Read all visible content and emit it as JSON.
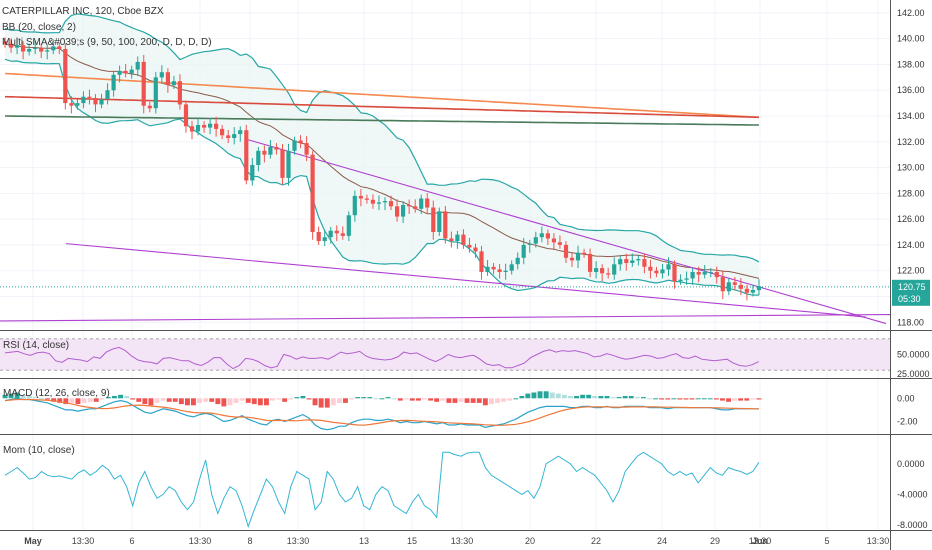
{
  "header": {
    "title": "CATERPILLAR INC, 120, Cboe BZX",
    "bb_label": "BB (20, close, 2)",
    "sma_label": "Multi SMA&#039;s (9, 50, 100, 200, D, D, D, D)"
  },
  "panes": {
    "rsi": {
      "label": "RSI (14, close)",
      "ticks": [
        "50.0000",
        "25.0000"
      ]
    },
    "macd": {
      "label": "MACD (12, 26, close, 9)",
      "ticks": [
        "0.00",
        "-2.00"
      ]
    },
    "mom": {
      "label": "Mom (10, close)",
      "ticks": [
        "0.0000",
        "-4.0000",
        "-8.0000"
      ]
    }
  },
  "price_axis": {
    "ticks": [
      "142.00",
      "140.00",
      "138.00",
      "136.00",
      "134.00",
      "132.00",
      "130.00",
      "128.00",
      "126.00",
      "124.00",
      "122.00",
      "120.00",
      "118.00"
    ],
    "last_price": "120.75",
    "countdown": "05:30"
  },
  "time_axis": [
    "May",
    "13:30",
    "6",
    "13:30",
    "8",
    "13:30",
    "13",
    "15",
    "13:30",
    "20",
    "22",
    "24",
    "29",
    "13:30",
    "Jun",
    "5",
    "13:30"
  ],
  "colors": {
    "up": "#26a69a",
    "down": "#ef5350",
    "bb_band": "#26a6a6",
    "bb_basis": "#8b5a4a",
    "sma50": "#6d4c41",
    "sma100": "#f4884e",
    "sma200": "#d84a3b",
    "sma_extra": "#4a7a5a",
    "trend": "#b040d0",
    "rsi_fill": "#f3e5f5",
    "rsi_line": "#b25ed0",
    "macd": "#29a3c9",
    "signal": "#f0773a",
    "mom": "#33b5d5"
  },
  "chart_data": {
    "type": "line",
    "title": "CATERPILLAR INC, 120, Cboe BZX",
    "ylim": [
      117.4,
      143.0
    ],
    "close": [
      139.6,
      139.3,
      139.5,
      139.0,
      139.2,
      139.3,
      139.0,
      139.1,
      139.4,
      139.2,
      135.0,
      134.8,
      135.0,
      135.5,
      135.4,
      134.9,
      135.3,
      136.0,
      137.2,
      137.5,
      137.3,
      137.6,
      138.2,
      134.8,
      134.6,
      137.0,
      137.4,
      136.4,
      136.7,
      134.9,
      133.2,
      132.8,
      133.3,
      133.1,
      133.4,
      133.0,
      132.5,
      132.3,
      132.6,
      132.9,
      129.0,
      130.2,
      131.3,
      131.0,
      131.6,
      131.4,
      129.2,
      131.3,
      132.1,
      131.9,
      131.0,
      125.0,
      124.3,
      124.6,
      125.1,
      124.9,
      124.7,
      126.3,
      127.8,
      127.6,
      127.5,
      127.2,
      127.3,
      127.4,
      127.0,
      126.2,
      127.1,
      127.0,
      126.8,
      127.6,
      126.9,
      125.0,
      126.6,
      124.5,
      124.3,
      124.8,
      124.0,
      123.8,
      123.5,
      121.9,
      122.3,
      122.1,
      121.9,
      122.0,
      122.5,
      123.0,
      124.0,
      124.1,
      124.6,
      124.9,
      124.5,
      124.2,
      124.0,
      123.0,
      122.8,
      123.4,
      123.3,
      121.9,
      122.2,
      121.8,
      121.7,
      122.5,
      122.9,
      122.6,
      122.8,
      122.9,
      122.3,
      122.0,
      121.8,
      122.1,
      122.5,
      121.2,
      121.3,
      121.4,
      121.9,
      121.7,
      121.9,
      121.9,
      121.5,
      120.4,
      121.1,
      120.9,
      120.6,
      120.3,
      120.5,
      120.8
    ],
    "series": [],
    "rsi": [
      52,
      53,
      54,
      51,
      49,
      52,
      53,
      51,
      42,
      40,
      45,
      44,
      43,
      41,
      47,
      45,
      53,
      57,
      59,
      55,
      48,
      43,
      41,
      40,
      38,
      45,
      46,
      44,
      42,
      42,
      38,
      36,
      40,
      46,
      46,
      38,
      32,
      36,
      45,
      44,
      41,
      36,
      33,
      35,
      50,
      48,
      44,
      47,
      45,
      45,
      46,
      44,
      48,
      53,
      51,
      52,
      54,
      48,
      45,
      44,
      43,
      44,
      47,
      53,
      51,
      52,
      48,
      44,
      41,
      45,
      50,
      47,
      46,
      48,
      49,
      44,
      38,
      36,
      37,
      33,
      33,
      36,
      39,
      46,
      50,
      54,
      56,
      53,
      55,
      54,
      55,
      53,
      51,
      47,
      48,
      51,
      49,
      46,
      44,
      45,
      47,
      49,
      48,
      45,
      46,
      49,
      51,
      46,
      45,
      48,
      44,
      43,
      42,
      43,
      44,
      39,
      36,
      35,
      37,
      41
    ],
    "macd_hist": [
      0.3,
      0.4,
      0.5,
      0.3,
      0.2,
      0.1,
      0.0,
      -0.1,
      -0.3,
      -0.4,
      -0.5,
      -0.4,
      -0.5,
      -0.4,
      -0.3,
      -0.3,
      -0.1,
      0.1,
      0.2,
      0.3,
      0.2,
      -0.1,
      -0.3,
      -0.5,
      -0.6,
      -0.4,
      -0.2,
      -0.3,
      -0.3,
      -0.5,
      -0.6,
      -0.6,
      -0.4,
      -0.3,
      -0.3,
      -0.5,
      -0.7,
      -0.6,
      -0.4,
      -0.2,
      -0.4,
      -0.5,
      -0.6,
      -0.6,
      -0.2,
      -0.1,
      -0.3,
      -0.1,
      0.1,
      0.2,
      -0.1,
      -0.6,
      -0.8,
      -0.8,
      -0.6,
      -0.4,
      -0.4,
      -0.1,
      0.1,
      0.1,
      0.1,
      0.0,
      0.0,
      0.1,
      0.0,
      -0.2,
      -0.1,
      -0.2,
      -0.2,
      -0.1,
      -0.2,
      -0.3,
      -0.2,
      -0.4,
      -0.4,
      -0.3,
      -0.4,
      -0.4,
      -0.4,
      -0.6,
      -0.5,
      -0.4,
      -0.3,
      -0.2,
      0.0,
      0.2,
      0.4,
      0.5,
      0.6,
      0.6,
      0.5,
      0.4,
      0.3,
      0.2,
      0.2,
      0.3,
      0.3,
      0.2,
      0.2,
      0.2,
      0.1,
      0.1,
      0.2,
      0.2,
      0.1,
      0.1,
      0.0,
      0.0,
      -0.1,
      -0.1,
      0.0,
      -0.1,
      -0.1,
      -0.1,
      0.0,
      0.0,
      0.0,
      -0.1,
      -0.2,
      -0.3,
      -0.2,
      -0.2,
      -0.2,
      -0.1,
      -0.1
    ],
    "macd": [
      -0.2,
      -0.1,
      0.0,
      -0.1,
      -0.1,
      -0.2,
      -0.3,
      -0.4,
      -0.6,
      -0.8,
      -1.0,
      -1.0,
      -1.1,
      -1.0,
      -0.9,
      -0.9,
      -0.7,
      -0.5,
      -0.3,
      -0.2,
      -0.3,
      -0.6,
      -0.9,
      -1.2,
      -1.3,
      -1.1,
      -0.9,
      -1.0,
      -1.1,
      -1.3,
      -1.5,
      -1.6,
      -1.4,
      -1.3,
      -1.4,
      -1.7,
      -2.0,
      -1.9,
      -1.7,
      -1.5,
      -1.8,
      -2.0,
      -2.2,
      -2.3,
      -1.9,
      -1.8,
      -2.0,
      -1.8,
      -1.6,
      -1.4,
      -1.7,
      -2.3,
      -2.6,
      -2.7,
      -2.6,
      -2.4,
      -2.4,
      -2.1,
      -1.9,
      -1.8,
      -1.8,
      -1.9,
      -1.9,
      -1.8,
      -1.9,
      -2.1,
      -2.0,
      -2.1,
      -2.1,
      -2.0,
      -2.1,
      -2.2,
      -2.1,
      -2.3,
      -2.3,
      -2.2,
      -2.3,
      -2.3,
      -2.3,
      -2.5,
      -2.4,
      -2.3,
      -2.2,
      -2.0,
      -1.8,
      -1.5,
      -1.2,
      -1.0,
      -0.8,
      -0.7,
      -0.7,
      -0.7,
      -0.7,
      -0.8,
      -0.8,
      -0.7,
      -0.7,
      -0.8,
      -0.8,
      -0.7,
      -0.8,
      -0.8,
      -0.7,
      -0.7,
      -0.7,
      -0.7,
      -0.8,
      -0.8,
      -0.8,
      -0.9,
      -0.8,
      -0.8,
      -0.8,
      -0.8,
      -0.8,
      -0.8,
      -0.8,
      -0.9,
      -1.0,
      -1.0,
      -0.9,
      -0.9,
      -0.9,
      -0.9,
      -0.9
    ],
    "momentum": [
      -1.5,
      -1.0,
      -0.5,
      -1.2,
      -2.0,
      -1.8,
      -1.0,
      -1.5,
      -1.7,
      -1.6,
      -1.8,
      -2.0,
      -1.2,
      -0.8,
      -1.5,
      -1.0,
      -0.2,
      -0.8,
      -2.0,
      -1.5,
      -3.0,
      -5.5,
      -2.5,
      -1.0,
      -3.0,
      -4.5,
      -4.0,
      -3.0,
      -3.5,
      -5.0,
      -6.0,
      -5.0,
      -2.0,
      0.5,
      -4.0,
      -6.5,
      -4.5,
      -3.0,
      -3.5,
      -5.5,
      -8.2,
      -6.0,
      -4.0,
      -2.0,
      -3.0,
      -5.0,
      -6.5,
      -3.0,
      -1.0,
      -1.5,
      -2.0,
      -6.0,
      -5.0,
      -1.0,
      -2.0,
      -4.0,
      -5.0,
      -4.5,
      -3.0,
      -5.5,
      -6.0,
      -4.0,
      -3.0,
      -3.5,
      -5.5,
      -6.0,
      -6.5,
      -5.0,
      -4.0,
      -5.5,
      -6.0,
      -7.0,
      1.5,
      1.5,
      1.2,
      1.0,
      1.4,
      1.5,
      1.5,
      -0.5,
      -1.5,
      -2.0,
      -2.5,
      -3.0,
      -3.5,
      -4.0,
      -3.5,
      -4.5,
      -3.0,
      0.0,
      0.5,
      1.0,
      0.5,
      0.0,
      -1.0,
      -0.5,
      -1.0,
      -1.5,
      -2.5,
      -3.5,
      -5.0,
      -3.5,
      -1.0,
      0.0,
      1.0,
      1.5,
      1.0,
      0.5,
      0.0,
      -1.0,
      -1.5,
      -1.0,
      -1.5,
      -1.2,
      -2.5,
      -1.5,
      -0.5,
      -1.2,
      -1.5,
      -0.5,
      -0.8,
      -1.0,
      -1.4,
      -1.0,
      0.2
    ]
  }
}
